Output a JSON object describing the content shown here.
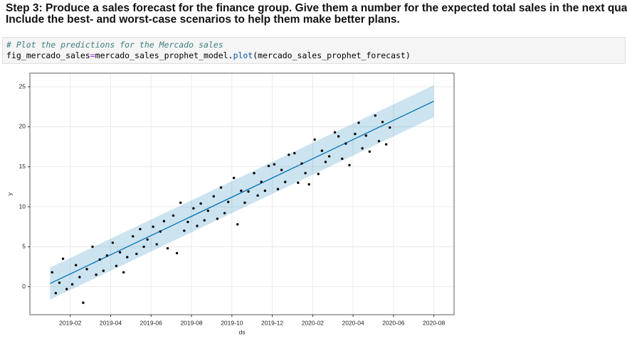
{
  "markdown": {
    "lines": [
      "Step 3: Produce a sales forecast for the finance group. Give them a number for the expected total sales in the next quarter.",
      "Include the best- and worst-case scenarios to help them make better plans."
    ]
  },
  "code": {
    "comment": "# Plot the predictions for the Mercado sales",
    "tokens": [
      "fig_mercado_sales",
      "=",
      "mercado_sales_prophet_model",
      ".",
      "plot",
      "(mercado_sales_prophet_forecast)"
    ]
  },
  "chart_data": {
    "type": "scatter",
    "xlabel": "ds",
    "ylabel": "y",
    "grid": true,
    "point_color": "#000000",
    "line_color": "#0072B2",
    "band_color": "#0072B2",
    "xlim": [
      "2018-12",
      "2020-09"
    ],
    "xticks": [
      "2019-02",
      "2019-04",
      "2019-06",
      "2019-08",
      "2019-10",
      "2019-12",
      "2020-02",
      "2020-04",
      "2020-06",
      "2020-08"
    ],
    "ylim": [
      -3.5,
      26.7
    ],
    "yticks": [
      0,
      5,
      10,
      15,
      20,
      25
    ],
    "x": [
      "2019-01",
      "2019-01",
      "2019-01",
      "2019-01",
      "2019-01",
      "2019-02",
      "2019-02",
      "2019-02",
      "2019-02",
      "2019-02",
      "2019-03",
      "2019-03",
      "2019-03",
      "2019-03",
      "2019-03",
      "2019-04",
      "2019-04",
      "2019-04",
      "2019-04",
      "2019-04",
      "2019-05",
      "2019-05",
      "2019-05",
      "2019-05",
      "2019-05",
      "2019-06",
      "2019-06",
      "2019-06",
      "2019-06",
      "2019-06",
      "2019-07",
      "2019-07",
      "2019-07",
      "2019-07",
      "2019-07",
      "2019-08",
      "2019-08",
      "2019-08",
      "2019-08",
      "2019-08",
      "2019-09",
      "2019-09",
      "2019-09",
      "2019-09",
      "2019-09",
      "2019-10",
      "2019-10",
      "2019-10",
      "2019-10",
      "2019-10",
      "2019-11",
      "2019-11",
      "2019-11",
      "2019-11",
      "2019-11",
      "2019-12",
      "2019-12",
      "2019-12",
      "2019-12",
      "2019-12",
      "2020-01",
      "2020-01",
      "2020-01",
      "2020-01",
      "2020-01",
      "2020-02",
      "2020-02",
      "2020-02",
      "2020-02",
      "2020-02",
      "2020-03",
      "2020-03",
      "2020-03",
      "2020-03",
      "2020-03",
      "2020-04",
      "2020-04",
      "2020-04",
      "2020-04",
      "2020-04",
      "2020-05",
      "2020-05",
      "2020-05",
      "2020-05",
      "2020-05"
    ],
    "values": [
      1.8,
      -0.8,
      0.5,
      3.5,
      -0.3,
      0.3,
      2.7,
      1.2,
      -2.0,
      2.2,
      5.0,
      1.5,
      3.4,
      2.0,
      3.9,
      5.5,
      2.6,
      4.3,
      1.8,
      3.7,
      6.3,
      4.1,
      7.2,
      5.0,
      5.9,
      7.5,
      5.3,
      6.9,
      8.2,
      4.8,
      8.9,
      4.2,
      10.5,
      7.0,
      8.1,
      9.8,
      7.6,
      10.4,
      8.3,
      9.5,
      11.3,
      8.5,
      12.4,
      9.2,
      10.6,
      13.6,
      7.8,
      12.0,
      10.5,
      11.9,
      14.2,
      11.4,
      13.1,
      12.0,
      15.1,
      15.3,
      12.2,
      14.6,
      13.1,
      16.5,
      16.7,
      13.0,
      15.4,
      14.2,
      12.8,
      18.4,
      14.1,
      17.0,
      15.6,
      16.3,
      19.3,
      18.8,
      16.0,
      17.9,
      15.2,
      19.1,
      20.5,
      17.3,
      18.9,
      16.9,
      21.4,
      18.2,
      20.6,
      17.8,
      19.9
    ],
    "forecast": {
      "x": [
        "2019-01",
        "2019-02",
        "2019-03",
        "2019-04",
        "2019-05",
        "2019-06",
        "2019-07",
        "2019-08",
        "2019-09",
        "2019-10",
        "2019-11",
        "2019-12",
        "2020-01",
        "2020-02",
        "2020-03",
        "2020-04",
        "2020-05",
        "2020-06",
        "2020-07",
        "2020-08"
      ],
      "yhat": [
        0.4,
        1.6,
        2.8,
        4.0,
        5.2,
        6.4,
        7.6,
        8.8,
        10.0,
        11.2,
        12.4,
        13.6,
        14.8,
        16.0,
        17.2,
        18.4,
        19.6,
        20.8,
        22.0,
        23.2
      ],
      "yhat_lower": [
        -1.6,
        -0.4,
        0.8,
        2.0,
        3.2,
        4.4,
        5.6,
        6.8,
        8.0,
        9.2,
        10.4,
        11.6,
        12.8,
        14.0,
        15.2,
        16.4,
        17.6,
        18.8,
        20.0,
        21.2
      ],
      "yhat_upper": [
        2.4,
        3.6,
        4.8,
        6.0,
        7.2,
        8.4,
        9.6,
        10.8,
        12.0,
        13.2,
        14.4,
        15.6,
        16.8,
        18.0,
        19.2,
        20.4,
        21.6,
        22.8,
        24.0,
        25.2
      ]
    }
  }
}
